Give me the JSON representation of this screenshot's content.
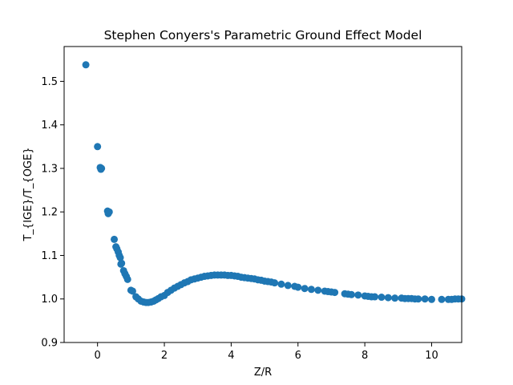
{
  "chart_data": {
    "type": "scatter",
    "title": "Stephen Conyers's Parametric Ground Effect Model",
    "xlabel": "Z/R",
    "ylabel": "T_{IGE}/T_{OGE}",
    "xlim": [
      -1.0,
      10.9
    ],
    "ylim": [
      0.9,
      1.58
    ],
    "xticks": [
      0,
      2,
      4,
      6,
      8,
      10
    ],
    "yticks": [
      0.9,
      1.0,
      1.1,
      1.2,
      1.3,
      1.4,
      1.5
    ],
    "xtick_labels": [
      "0",
      "2",
      "4",
      "6",
      "8",
      "10"
    ],
    "ytick_labels": [
      "0.9",
      "1.0",
      "1.1",
      "1.2",
      "1.3",
      "1.4",
      "1.5"
    ],
    "grid": false,
    "legend": "none",
    "marker_color": "#1f77b4",
    "series": [
      {
        "x": [
          -0.35,
          0.0,
          0.08,
          0.1,
          0.12,
          0.3,
          0.32,
          0.35,
          0.5,
          0.55,
          0.58,
          0.62,
          0.65,
          0.68,
          0.7,
          0.72,
          0.78,
          0.82,
          0.86,
          0.9,
          1.0,
          1.05,
          1.15,
          1.22,
          1.3,
          1.38,
          1.45,
          1.52,
          1.6,
          1.68,
          1.75,
          1.82,
          1.9,
          2.0,
          2.1,
          2.2,
          2.3,
          2.4,
          2.5,
          2.6,
          2.7,
          2.8,
          2.9,
          3.0,
          3.1,
          3.2,
          3.3,
          3.4,
          3.5,
          3.6,
          3.7,
          3.8,
          3.9,
          4.0,
          4.1,
          4.2,
          4.3,
          4.4,
          4.5,
          4.6,
          4.7,
          4.8,
          4.9,
          5.0,
          5.1,
          5.2,
          5.3,
          5.5,
          5.7,
          5.9,
          6.0,
          6.2,
          6.4,
          6.6,
          6.8,
          6.9,
          7.0,
          7.1,
          7.4,
          7.5,
          7.6,
          7.8,
          8.0,
          8.1,
          8.2,
          8.3,
          8.5,
          8.7,
          8.9,
          9.1,
          9.2,
          9.3,
          9.4,
          9.5,
          9.6,
          9.8,
          10.0,
          10.3,
          10.5,
          10.6,
          10.7,
          10.8,
          10.9
        ],
        "y": [
          1.538,
          1.35,
          1.302,
          1.298,
          1.3,
          1.202,
          1.196,
          1.2,
          1.137,
          1.12,
          1.115,
          1.108,
          1.1,
          1.095,
          1.08,
          1.082,
          1.065,
          1.058,
          1.052,
          1.045,
          1.02,
          1.018,
          1.005,
          1.0,
          0.995,
          0.993,
          0.992,
          0.992,
          0.993,
          0.995,
          0.998,
          1.001,
          1.005,
          1.008,
          1.015,
          1.02,
          1.025,
          1.029,
          1.033,
          1.037,
          1.04,
          1.044,
          1.046,
          1.048,
          1.05,
          1.052,
          1.053,
          1.054,
          1.055,
          1.055,
          1.055,
          1.055,
          1.054,
          1.054,
          1.053,
          1.052,
          1.05,
          1.049,
          1.048,
          1.047,
          1.046,
          1.044,
          1.043,
          1.041,
          1.04,
          1.039,
          1.037,
          1.034,
          1.031,
          1.029,
          1.027,
          1.024,
          1.022,
          1.02,
          1.018,
          1.017,
          1.016,
          1.015,
          1.012,
          1.011,
          1.01,
          1.009,
          1.007,
          1.006,
          1.005,
          1.005,
          1.004,
          1.003,
          1.002,
          1.002,
          1.001,
          1.001,
          1.001,
          1.0,
          1.0,
          1.0,
          0.999,
          0.999,
          0.999,
          0.999,
          1.0,
          1.0,
          1.0
        ]
      }
    ]
  }
}
